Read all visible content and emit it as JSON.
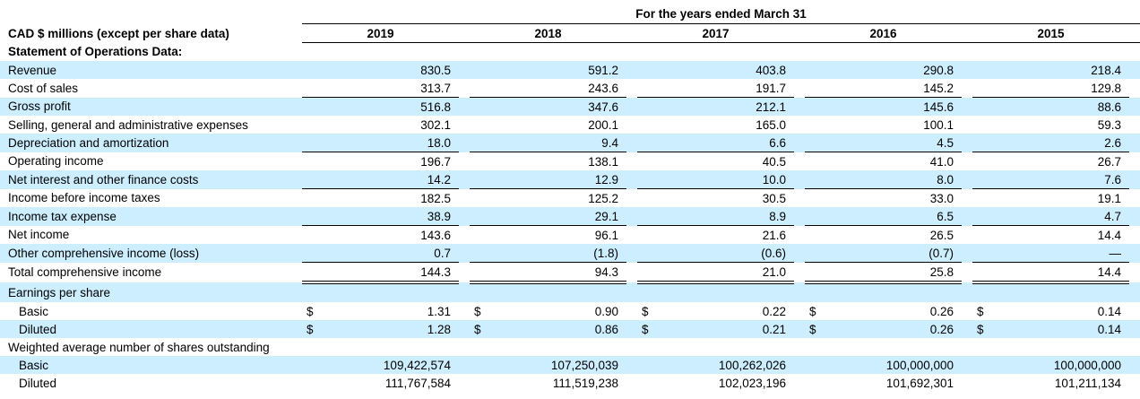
{
  "colors": {
    "row_shade": "#cceeff",
    "text": "#000000",
    "rule": "#000000"
  },
  "table": {
    "period_header": "For the years ended March 31",
    "unit_label": "CAD $ millions (except per share data)",
    "currency_symbol": "$",
    "years": [
      "2019",
      "2018",
      "2017",
      "2016",
      "2015"
    ],
    "rows": [
      {
        "label": "Statement of Operations Data:",
        "values": [
          "",
          "",
          "",
          "",
          ""
        ],
        "shaded": false,
        "bold": true,
        "indent": false,
        "currency": false,
        "underline": "none"
      },
      {
        "label": "Revenue",
        "values": [
          "830.5",
          "591.2",
          "403.8",
          "290.8",
          "218.4"
        ],
        "shaded": true,
        "bold": false,
        "indent": false,
        "currency": false,
        "underline": "none"
      },
      {
        "label": "Cost of sales",
        "values": [
          "313.7",
          "243.6",
          "191.7",
          "145.2",
          "129.8"
        ],
        "shaded": false,
        "bold": false,
        "indent": false,
        "currency": false,
        "underline": "single"
      },
      {
        "label": "Gross profit",
        "values": [
          "516.8",
          "347.6",
          "212.1",
          "145.6",
          "88.6"
        ],
        "shaded": true,
        "bold": false,
        "indent": false,
        "currency": false,
        "underline": "none"
      },
      {
        "label": "Selling, general and administrative expenses",
        "values": [
          "302.1",
          "200.1",
          "165.0",
          "100.1",
          "59.3"
        ],
        "shaded": false,
        "bold": false,
        "indent": false,
        "currency": false,
        "underline": "none"
      },
      {
        "label": "Depreciation and amortization",
        "values": [
          "18.0",
          "9.4",
          "6.6",
          "4.5",
          "2.6"
        ],
        "shaded": true,
        "bold": false,
        "indent": false,
        "currency": false,
        "underline": "single"
      },
      {
        "label": "Operating income",
        "values": [
          "196.7",
          "138.1",
          "40.5",
          "41.0",
          "26.7"
        ],
        "shaded": false,
        "bold": false,
        "indent": false,
        "currency": false,
        "underline": "none"
      },
      {
        "label": "Net interest and other finance costs",
        "values": [
          "14.2",
          "12.9",
          "10.0",
          "8.0",
          "7.6"
        ],
        "shaded": true,
        "bold": false,
        "indent": false,
        "currency": false,
        "underline": "single"
      },
      {
        "label": "Income before income taxes",
        "values": [
          "182.5",
          "125.2",
          "30.5",
          "33.0",
          "19.1"
        ],
        "shaded": false,
        "bold": false,
        "indent": false,
        "currency": false,
        "underline": "none"
      },
      {
        "label": "Income tax expense",
        "values": [
          "38.9",
          "29.1",
          "8.9",
          "6.5",
          "4.7"
        ],
        "shaded": true,
        "bold": false,
        "indent": false,
        "currency": false,
        "underline": "single"
      },
      {
        "label": "Net income",
        "values": [
          "143.6",
          "96.1",
          "21.6",
          "26.5",
          "14.4"
        ],
        "shaded": false,
        "bold": false,
        "indent": false,
        "currency": false,
        "underline": "none"
      },
      {
        "label": "Other comprehensive income (loss)",
        "values": [
          "0.7",
          "(1.8)",
          "(0.6)",
          "(0.7)",
          "—"
        ],
        "shaded": true,
        "bold": false,
        "indent": false,
        "currency": false,
        "underline": "single"
      },
      {
        "label": "Total comprehensive income",
        "values": [
          "144.3",
          "94.3",
          "21.0",
          "25.8",
          "14.4"
        ],
        "shaded": false,
        "bold": false,
        "indent": false,
        "currency": false,
        "underline": "double"
      },
      {
        "label": "Earnings per share",
        "values": [
          "",
          "",
          "",
          "",
          ""
        ],
        "shaded": true,
        "bold": false,
        "indent": false,
        "currency": false,
        "underline": "none"
      },
      {
        "label": "Basic",
        "values": [
          "1.31",
          "0.90",
          "0.22",
          "0.26",
          "0.14"
        ],
        "shaded": false,
        "bold": false,
        "indent": true,
        "currency": true,
        "underline": "none"
      },
      {
        "label": "Diluted",
        "values": [
          "1.28",
          "0.86",
          "0.21",
          "0.26",
          "0.14"
        ],
        "shaded": true,
        "bold": false,
        "indent": true,
        "currency": true,
        "underline": "none"
      },
      {
        "label": "Weighted average number of shares outstanding",
        "values": [
          "",
          "",
          "",
          "",
          ""
        ],
        "shaded": false,
        "bold": false,
        "indent": false,
        "currency": false,
        "underline": "none"
      },
      {
        "label": "Basic",
        "values": [
          "109,422,574",
          "107,250,039",
          "100,262,026",
          "100,000,000",
          "100,000,000"
        ],
        "shaded": true,
        "bold": false,
        "indent": true,
        "currency": false,
        "underline": "none"
      },
      {
        "label": "Diluted",
        "values": [
          "111,767,584",
          "111,519,238",
          "102,023,196",
          "101,692,301",
          "101,211,134"
        ],
        "shaded": false,
        "bold": false,
        "indent": true,
        "currency": false,
        "underline": "none"
      }
    ]
  }
}
